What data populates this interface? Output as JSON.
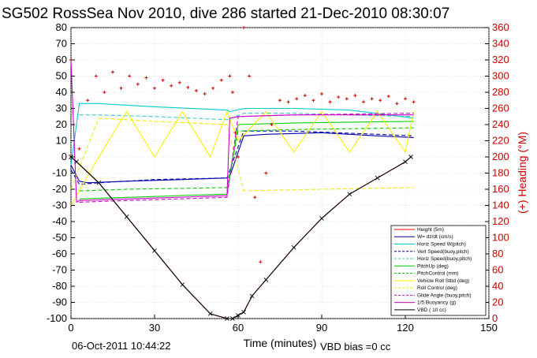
{
  "chart_data": {
    "type": "line",
    "title": "SG502 RossSea Nov 2010, dive 286 started 21-Dec-2010 08:30:07",
    "xlabel": "Time (minutes)",
    "ylabel": "",
    "ylabel_right": "(+) Heading (°M)",
    "xlim": [
      0,
      150
    ],
    "ylim": [
      -100,
      80
    ],
    "ylim_right": [
      0,
      360
    ],
    "x_ticks": [
      "0",
      "30",
      "60",
      "90",
      "120",
      "150"
    ],
    "y_ticks": [
      "-100",
      "-90",
      "-80",
      "-70",
      "-60",
      "-50",
      "-40",
      "-30",
      "-20",
      "-10",
      "0",
      "10",
      "20",
      "30",
      "40",
      "50",
      "60",
      "70",
      "80"
    ],
    "y_ticks_right": [
      "0",
      "20",
      "40",
      "60",
      "80",
      "100",
      "120",
      "140",
      "160",
      "180",
      "200",
      "220",
      "240",
      "260",
      "280",
      "300",
      "320",
      "340",
      "360"
    ],
    "legend_position": "bottom-right",
    "series": [
      {
        "name": "Height (5m)",
        "color": "#ff0000",
        "style": "solid",
        "x": [
          0,
          2,
          10,
          20,
          30,
          40,
          50,
          56,
          58,
          60,
          62,
          65,
          70,
          80,
          90,
          100,
          110,
          120,
          122
        ],
        "y": [
          0,
          -3,
          -16,
          -37,
          -58,
          -79,
          -97,
          -100,
          -100,
          -98,
          -96,
          -86,
          -76,
          -56,
          -38,
          -23,
          -13,
          -3,
          0
        ]
      },
      {
        "name": "W= dz/dt (cm/s)",
        "color": "#0000aa",
        "style": "solid",
        "x": [
          0,
          3,
          6,
          20,
          40,
          56,
          57,
          62,
          70,
          90,
          110,
          123
        ],
        "y": [
          -5,
          -15,
          -16,
          -15,
          -14,
          -13,
          -12,
          13,
          14,
          15,
          13,
          12
        ]
      },
      {
        "name": "Horiz Speed W(pitch)",
        "color": "#00cccc",
        "style": "solid",
        "x": [
          0,
          3,
          10,
          30,
          56,
          57,
          62,
          80,
          100,
          123
        ],
        "y": [
          -5,
          33,
          33,
          31,
          29,
          28,
          30,
          30,
          29,
          24
        ]
      },
      {
        "name": "Vert Speed(buoy,pitch)",
        "color": "#0000aa",
        "style": "dashed",
        "x": [
          0,
          3,
          10,
          30,
          56,
          62,
          80,
          110,
          123
        ],
        "y": [
          -8,
          -17,
          -16,
          -14,
          -13,
          16,
          16,
          14,
          13
        ]
      },
      {
        "name": "Horiz Speed(buoy,pitch)",
        "color": "#33cccc",
        "style": "dashed",
        "x": [
          3,
          10,
          30,
          56,
          62,
          80,
          100,
          123
        ],
        "y": [
          26,
          26,
          25,
          23,
          27,
          27,
          26,
          25
        ]
      },
      {
        "name": "PitchUp (deg)",
        "color": "#00cc00",
        "style": "solid",
        "x": [
          3,
          20,
          56,
          60,
          80,
          123
        ],
        "y": [
          -26,
          -25,
          -23,
          20,
          21,
          22
        ]
      },
      {
        "name": "PitchControl (mm)",
        "color": "#00cc00",
        "style": "dashed",
        "x": [
          3,
          20,
          56,
          60,
          80,
          123
        ],
        "y": [
          -21,
          -20,
          -19,
          16,
          17,
          18
        ]
      },
      {
        "name": "Vehicle Roll Stbd (deg)",
        "color": "#ffee00",
        "style": "solid",
        "x": [
          0,
          10,
          20,
          30,
          40,
          50,
          56,
          60,
          70,
          80,
          90,
          100,
          110,
          120,
          123
        ],
        "y": [
          -30,
          0,
          28,
          0,
          28,
          0,
          28,
          10,
          28,
          3,
          28,
          3,
          28,
          3,
          28
        ]
      },
      {
        "name": "Roll Control (deg)",
        "color": "#eeee00",
        "style": "dashed",
        "x": [
          0,
          10,
          30,
          56,
          62,
          90,
          123
        ],
        "y": [
          -20,
          24,
          22,
          20,
          -21,
          -20,
          -19
        ]
      },
      {
        "name": "Glide Angle (buoy,pitch)",
        "color": "#cc00cc",
        "style": "dashed",
        "x": [
          3,
          20,
          56,
          60,
          80,
          123
        ],
        "y": [
          -28,
          -27,
          -25,
          25,
          26,
          27
        ]
      },
      {
        "name": "1/5 Buoyancy (g)",
        "color": "#cc00cc",
        "style": "solid",
        "x": [
          0,
          2,
          3,
          20,
          56,
          57,
          60,
          80,
          123
        ],
        "y": [
          60,
          -28,
          -27,
          -26,
          -24,
          24,
          25,
          26,
          26
        ]
      },
      {
        "name": "VBD ( 10 cc)",
        "color": "#000000",
        "style": "solid-markers",
        "x": [
          0,
          2,
          10,
          20,
          30,
          40,
          50,
          56,
          58,
          60,
          62,
          65,
          70,
          80,
          90,
          100,
          110,
          120,
          122
        ],
        "y": [
          0,
          -3,
          -16,
          -37,
          -58,
          -79,
          -97,
          -100,
          -100,
          -98,
          -96,
          -86,
          -76,
          -56,
          -38,
          -23,
          -13,
          -3,
          0
        ]
      },
      {
        "name": "Heading",
        "color": "#cc0000",
        "style": "markers",
        "axis": "right",
        "x": [
          0,
          3,
          6,
          9,
          12,
          15,
          18,
          21,
          24,
          27,
          30,
          33,
          36,
          39,
          42,
          45,
          48,
          51,
          54,
          57,
          58,
          59,
          60,
          62,
          64,
          66,
          68,
          70,
          72,
          75,
          78,
          81,
          84,
          87,
          90,
          93,
          96,
          99,
          102,
          105,
          108,
          111,
          114,
          117,
          120,
          123
        ],
        "y": [
          320,
          210,
          270,
          300,
          280,
          305,
          285,
          300,
          290,
          298,
          285,
          295,
          288,
          292,
          286,
          282,
          278,
          285,
          295,
          300,
          280,
          230,
          200,
          360,
          300,
          150,
          70,
          180,
          240,
          270,
          268,
          272,
          276,
          270,
          278,
          268,
          274,
          272,
          276,
          268,
          272,
          270,
          275,
          266,
          272,
          268
        ]
      }
    ]
  },
  "footer": {
    "timestamp": "06-Oct-2011 10:44:22",
    "vbd_bias": "VBD bias =0 cc"
  }
}
